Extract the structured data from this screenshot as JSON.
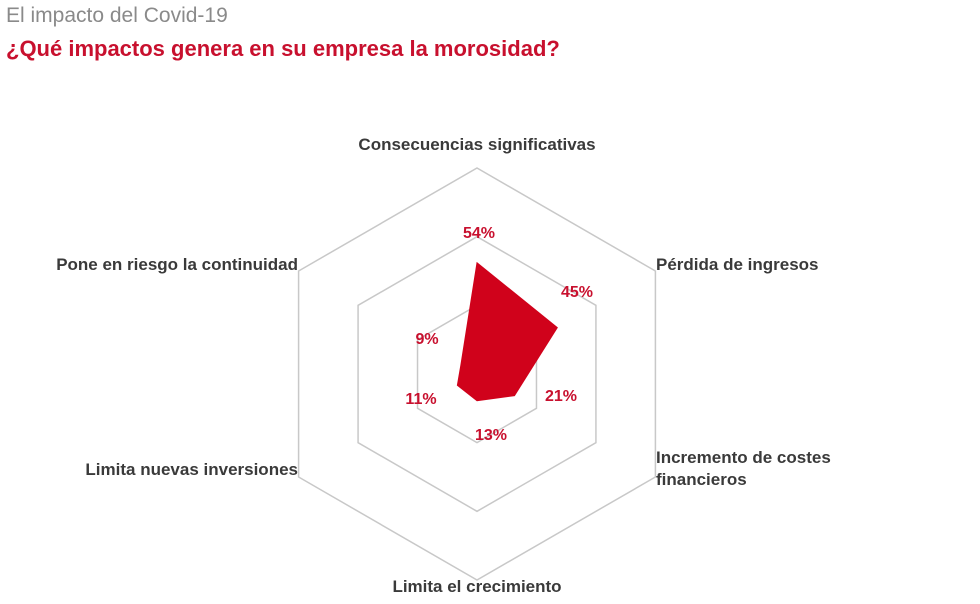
{
  "header": {
    "title": "El impacto del Covid-19",
    "subtitle": "¿Qué impactos genera en su empresa la morosidad?"
  },
  "chart_data": {
    "type": "radar",
    "title": "¿Qué impactos genera en su empresa la morosidad?",
    "axes": [
      {
        "label_lines": [
          "Consecuencias significativas"
        ],
        "value": 54,
        "value_label": "54%"
      },
      {
        "label_lines": [
          "Pérdida de ingresos"
        ],
        "value": 45,
        "value_label": "45%"
      },
      {
        "label_lines": [
          "Incremento de costes",
          "financieros"
        ],
        "value": 21,
        "value_label": "21%"
      },
      {
        "label_lines": [
          "Limita el crecimiento"
        ],
        "value": 13,
        "value_label": "13%"
      },
      {
        "label_lines": [
          "Limita nuevas inversiones"
        ],
        "value": 11,
        "value_label": "11%"
      },
      {
        "label_lines": [
          "Pone en riesgo la continuidad"
        ],
        "value": 9,
        "value_label": "9%"
      }
    ],
    "scale_max": 100,
    "grid_rings": 3,
    "series_color": "#d0021b",
    "grid_color": "#c8c8c8"
  }
}
